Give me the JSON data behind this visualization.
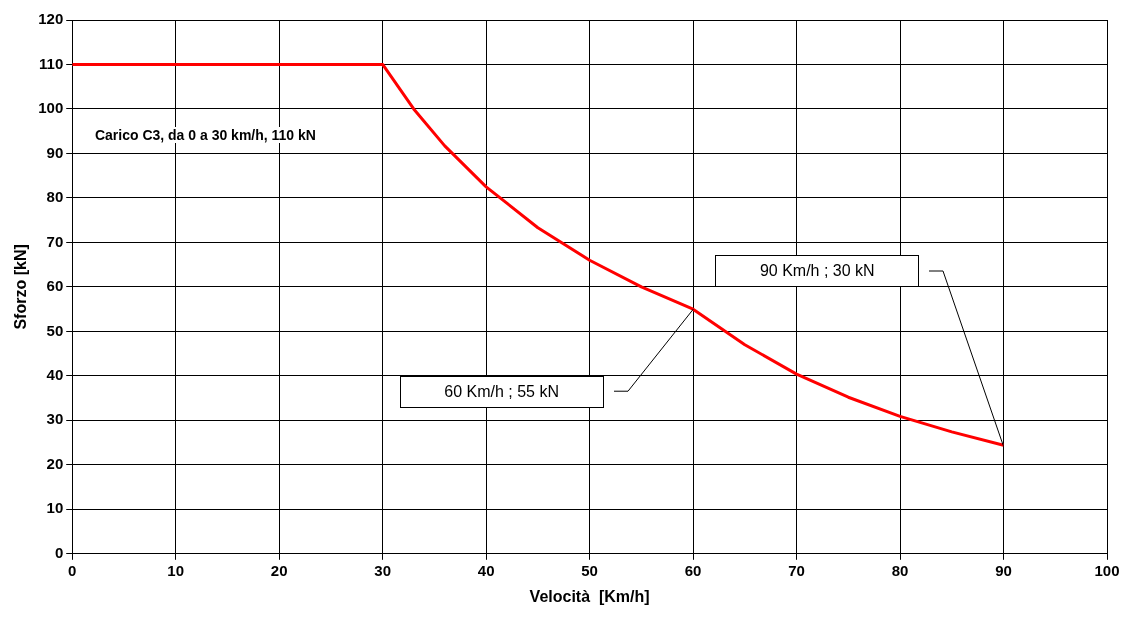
{
  "chart_data": {
    "type": "line",
    "xlabel": "Velocità  [Km/h]",
    "ylabel": "Sforzo [kN]",
    "series": [
      {
        "color": "#ff0000",
        "x": [
          0,
          30,
          33,
          36,
          40,
          45,
          50,
          55,
          60,
          65,
          70,
          75,
          80,
          85,
          90
        ],
        "values": [
          110,
          110,
          100,
          91.7,
          82.5,
          73.3,
          66,
          60,
          55,
          47,
          40.4,
          35.2,
          30.9,
          27.4,
          24.4
        ]
      }
    ],
    "xlim": [
      0,
      100
    ],
    "xticks": [
      0,
      10,
      20,
      30,
      40,
      50,
      60,
      70,
      80,
      90,
      100
    ],
    "ylim": [
      0,
      120
    ],
    "yticks": [
      0,
      10,
      20,
      30,
      40,
      50,
      60,
      70,
      80,
      90,
      100,
      110,
      120
    ],
    "grid": true,
    "legend": false,
    "marker": "none",
    "line_style": "solid",
    "annotations": [
      "Carico C3,  da 0 a 30 km/h, 110 kN",
      "60 Km/h ; 55 kN",
      "90 Km/h ; 30 kN"
    ]
  }
}
